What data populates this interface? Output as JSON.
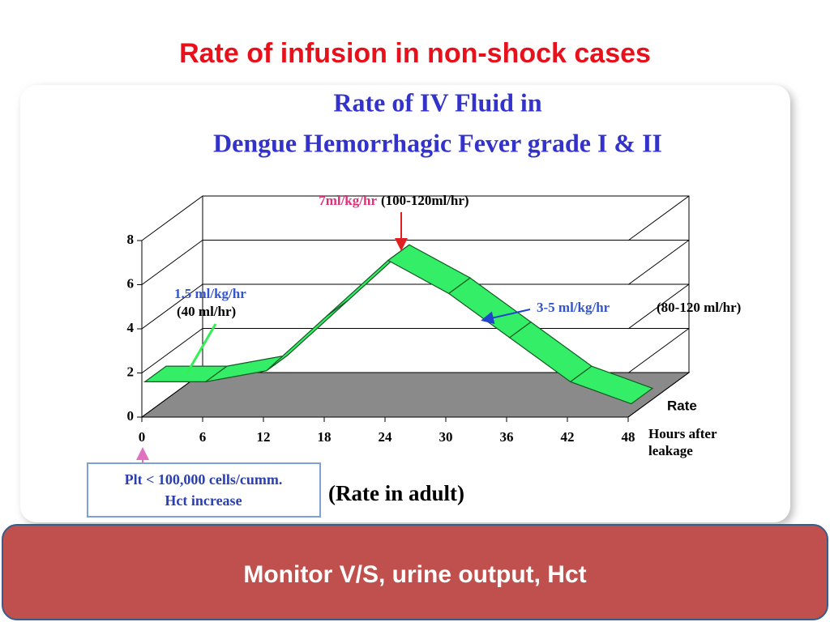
{
  "slide_title": "Rate of infusion in non-shock cases",
  "chart_data": {
    "type": "line",
    "title_lines": [
      "Rate of IV Fluid in",
      "Dengue Hemorrhagic Fever grade I & II"
    ],
    "x": [
      0,
      6,
      12,
      18,
      24,
      30,
      36,
      42,
      48
    ],
    "values": [
      1.5,
      1.5,
      2,
      4.5,
      7,
      5.5,
      3.5,
      1.5,
      0.5
    ],
    "color": "#33ee66",
    "xlim": [
      0,
      48
    ],
    "xticks": [
      0,
      6,
      12,
      18,
      24,
      30,
      36,
      42,
      48
    ],
    "ylim": [
      0,
      8
    ],
    "yticks": [
      0,
      2,
      4,
      6,
      8
    ],
    "grid": true,
    "ylabel": "Rate",
    "xlabel_lines": [
      "Hours after",
      "leakage"
    ],
    "annotations": [
      "7ml/kg/hr",
      "(100-120ml/hr)",
      "1.5 ml/kg/hr",
      "(40 ml/hr)",
      "3-5 ml/kg/hr",
      "(80-120 ml/hr)",
      "(Rate in adult)"
    ],
    "note_lines": [
      "Plt < 100,000 cells/cumm.",
      "Hct increase"
    ]
  },
  "footer": "Monitor V/S, urine output, Hct"
}
